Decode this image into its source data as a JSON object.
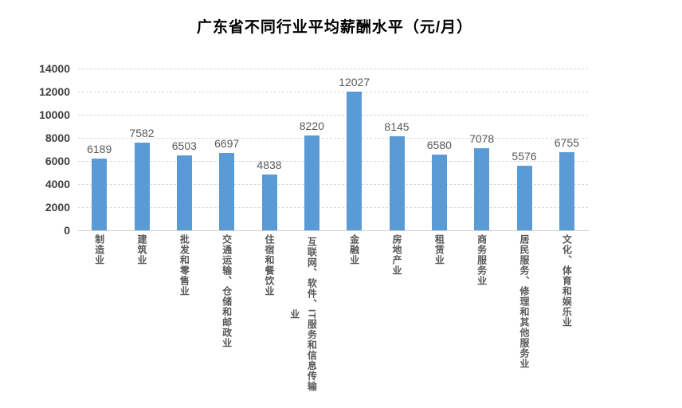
{
  "chart_data": {
    "type": "bar",
    "title": "广东省不同行业平均薪酬水平（元/月）",
    "categories": [
      "制造业",
      "建筑业",
      "批发和零售业",
      "交通运输、仓储和邮政业",
      "住宿和餐饮业",
      "互联网、软件、IT服务和信息传输业",
      "金融业",
      "房地产业",
      "租赁业",
      "商务服务业",
      "居民服务、修理和其他服务业",
      "文化、体育和娱乐业"
    ],
    "values": [
      6189,
      7582,
      6503,
      6697,
      4838,
      8220,
      12027,
      8145,
      6580,
      7078,
      5576,
      6755
    ],
    "data_labels_shown": true,
    "xlabel": "",
    "ylabel": "",
    "ylim": [
      0,
      14000
    ],
    "yticks": [
      0,
      2000,
      4000,
      6000,
      8000,
      10000,
      12000,
      14000
    ],
    "grid": "horizontal-dashed",
    "legend_position": "none",
    "colors": {
      "bar": "#5b9bd5",
      "title_text": "#000000",
      "value_label_text": "#595959",
      "category_label_text": "#595959",
      "ytick_text": "#404040",
      "gridline": "#d9d9d9",
      "axis_line": "#cfcfcf",
      "background": "#ffffff"
    }
  }
}
